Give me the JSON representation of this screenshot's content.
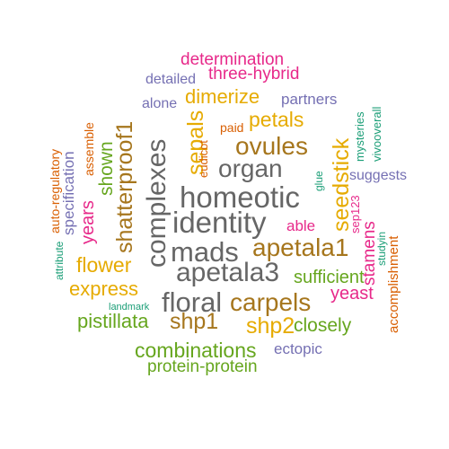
{
  "palette": {
    "pink": "#E7298A",
    "purple": "#7570B3",
    "gold": "#E6AB02",
    "orange": "#D95F02",
    "green": "#66A61E",
    "teal": "#1B9E77",
    "brown": "#A6761D",
    "gray": "#666666"
  },
  "words": {
    "determination": "determination",
    "three_hybrid": "three-hybrid",
    "detailed": "detailed",
    "dimerize": "dimerize",
    "partners": "partners",
    "alone": "alone",
    "petals": "petals",
    "paid": "paid",
    "ovules": "ovules",
    "organ": "organ",
    "homeotic": "homeotic",
    "identity": "identity",
    "mads": "mads",
    "apetala1": "apetala1",
    "apetala3": "apetala3",
    "able": "able",
    "suggests": "suggests",
    "flower": "flower",
    "express": "express",
    "sufficient": "sufficient",
    "yeast": "yeast",
    "floral": "floral",
    "carpels": "carpels",
    "landmark": "landmark",
    "pistillata": "pistillata",
    "shp1": "shp1",
    "shp2": "shp2",
    "closely": "closely",
    "combinations": "combinations",
    "ectopic": "ectopic",
    "protein_protein": "protein-protein",
    "shatterproof1": "shatterproof1",
    "complexes": "complexes",
    "sepals": "sepals",
    "seedstick": "seedstick",
    "shown": "shown",
    "years": "years",
    "specification": "specification",
    "assemble": "assemble",
    "auto_regulatory": "auto-regulatory",
    "attribute": "attribute",
    "eudicot": "eudicot",
    "glue": "glue",
    "mysteries": "mysteries",
    "vivooverall": "vivooverall",
    "sep123": "sep123",
    "stamens": "stamens",
    "studyin": "studyin",
    "accomplishment": "accomplishment"
  }
}
